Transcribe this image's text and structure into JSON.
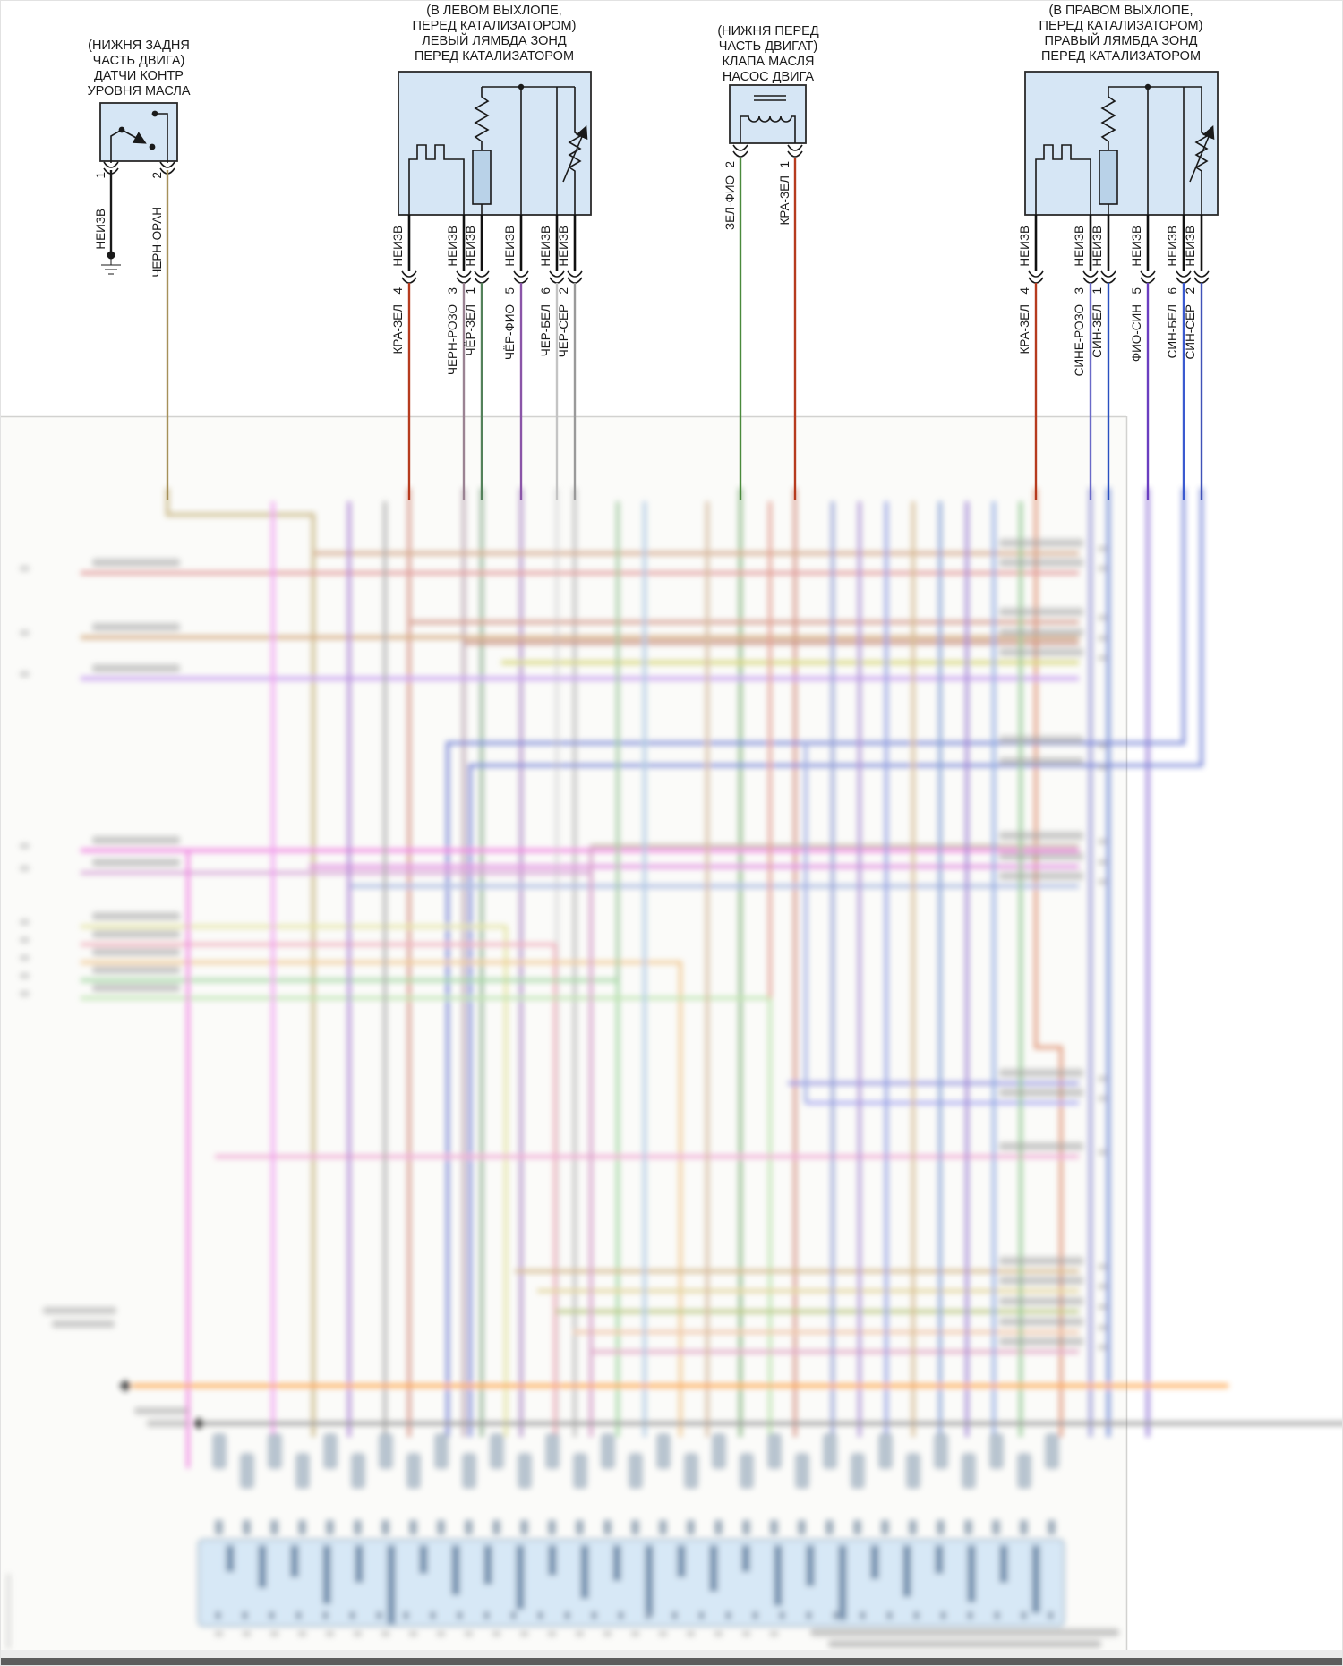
{
  "diagram": {
    "palette": {
      "box_fill": "#d6e6f5",
      "box_stroke": "#2a2a2a",
      "connector_fill": "#cfe4f5",
      "connector_stroke": "#7d9cba"
    },
    "components": [
      {
        "id": "oil-level-sensor",
        "title_lines": [
          "(НИЖНЯ ЗАДНЯ",
          "ЧАСТЬ ДВИГА)",
          "ДАТЧИ КОНТР",
          "УРОВНЯ МАСЛА"
        ],
        "pins": [
          {
            "number": "1",
            "wire_label": "НЕИЗВ",
            "wire_color": "#1a1a1a"
          },
          {
            "number": "2",
            "wire_label": "ЧЕРН-ОРАН",
            "wire_color": "#a6915a"
          }
        ]
      },
      {
        "id": "left-lambda-sensor",
        "title_lines": [
          "(В ЛЕВОМ ВЫХЛОПЕ,",
          "ПЕРЕД КАТАЛИЗАТОРОМ)",
          "ЛЕВЫЙ ЛЯМБДА ЗОНД",
          "ПЕРЕД КАТАЛИЗАТОРОМ"
        ],
        "pins": [
          {
            "number": "4",
            "stub_label": "НЕИЗВ",
            "wire_label": "КРА-ЗЕЛ",
            "wire_color": "#b63b1e"
          },
          {
            "number": "3",
            "stub_label": "НЕИЗВ",
            "wire_label": "ЧЕРН-РОЗО",
            "wire_color": "#9b8393"
          },
          {
            "number": "1",
            "stub_label": "НЕИЗВ",
            "wire_label": "ЧЁР-ЗЕЛ",
            "wire_color": "#53815a"
          },
          {
            "number": "5",
            "stub_label": "НЕИЗВ",
            "wire_label": "ЧЁР-ФИО",
            "wire_color": "#8a55a8"
          },
          {
            "number": "6",
            "stub_label": "НЕИЗВ",
            "wire_label": "ЧЕР-БЕЛ",
            "wire_color": "#c4c4c4"
          },
          {
            "number": "2",
            "stub_label": "НЕИЗВ",
            "wire_label": "ЧЕР-СЕР",
            "wire_color": "#9a9a9a"
          }
        ]
      },
      {
        "id": "engine-oil-pump-valve",
        "title_lines": [
          "(НИЖНЯ ПЕРЕД",
          "ЧАСТЬ ДВИГАТ)",
          "КЛАПА МАСЛЯ",
          "НАСОС ДВИГА"
        ],
        "pins": [
          {
            "number": "2",
            "wire_label": "ЗЕЛ-ФИО",
            "wire_color": "#4a8a3c"
          },
          {
            "number": "1",
            "wire_label": "КРА-ЗЕЛ",
            "wire_color": "#b63b1e"
          }
        ]
      },
      {
        "id": "right-lambda-sensor",
        "title_lines": [
          "(В ПРАВОМ ВЫХЛОПЕ,",
          "ПЕРЕД КАТАЛИЗАТОРОМ)",
          "ПРАВЫЙ ЛЯМБДА ЗОНД",
          "ПЕРЕД КАТАЛИЗАТОРОМ"
        ],
        "pins": [
          {
            "number": "4",
            "stub_label": "НЕИЗВ",
            "wire_label": "КРА-ЗЕЛ",
            "wire_color": "#b63b1e"
          },
          {
            "number": "3",
            "stub_label": "НЕИЗВ",
            "wire_label": "СИНЕ-РОЗО",
            "wire_color": "#6a6ac8"
          },
          {
            "number": "1",
            "stub_label": "НЕИЗВ",
            "wire_label": "СИН-ЗЕЛ",
            "wire_color": "#2a50c0"
          },
          {
            "number": "5",
            "stub_label": "НЕИЗВ",
            "wire_label": "ФИО-СИН",
            "wire_color": "#6a3ec0"
          },
          {
            "number": "6",
            "stub_label": "НЕИЗВ",
            "wire_label": "СИН-БЕЛ",
            "wire_color": "#3a5ad0"
          },
          {
            "number": "2",
            "stub_label": "НЕИЗВ",
            "wire_label": "СИН-СЕР",
            "wire_color": "#4052b8"
          }
        ]
      }
    ]
  }
}
